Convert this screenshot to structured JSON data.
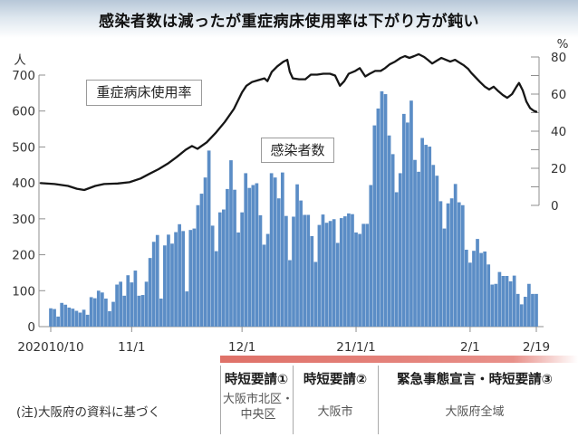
{
  "header": {
    "title": "感染者数は減ったが重症病床使用率は下がり方が鈍い"
  },
  "legends": {
    "line_label": "重症病床使用率",
    "bar_label": "感染者数"
  },
  "note": "(注)大阪府の資料に基づく",
  "colors": {
    "bar": "#5b8dc6",
    "line": "#161616",
    "band": "#e5847d",
    "axis": "#8f8f8f",
    "tick_text": "#333333"
  },
  "chart_data": {
    "type": "bar+line",
    "title": "感染者数は減ったが重症病床使用率は下がり方が鈍い",
    "start_date": "2020/10/10",
    "end_date": "2021/2/19",
    "left_axis": {
      "label": "人",
      "ticks": [
        0,
        100,
        200,
        300,
        400,
        500,
        600,
        700
      ],
      "max": 700
    },
    "right_axis": {
      "label": "%",
      "ticks": [
        0,
        20,
        40,
        60,
        80
      ],
      "minor_ticks": [
        10,
        30,
        50,
        70
      ],
      "max": 80
    },
    "x_axis": {
      "tick_labels": [
        "202010/10",
        "11/1",
        "12/1",
        "21/1/1",
        "2/1",
        "2/19"
      ],
      "tick_days": [
        0,
        22,
        52,
        83,
        114,
        132
      ]
    },
    "bar_series": {
      "name": "感染者数",
      "unit": "人",
      "values": [
        51,
        49,
        28,
        66,
        61,
        53,
        50,
        44,
        39,
        47,
        33,
        82,
        79,
        100,
        95,
        78,
        43,
        69,
        117,
        125,
        86,
        143,
        123,
        156,
        86,
        88,
        125,
        191,
        236,
        255,
        78,
        226,
        256,
        231,
        263,
        285,
        266,
        98,
        269,
        273,
        338,
        370,
        415,
        490,
        281,
        210,
        318,
        326,
        383,
        463,
        381,
        262,
        318,
        427,
        386,
        394,
        399,
        310,
        228,
        258,
        427,
        415,
        357,
        429,
        308,
        185,
        306,
        396,
        351,
        311,
        311,
        252,
        180,
        283,
        312,
        289,
        294,
        299,
        233,
        302,
        307,
        315,
        313,
        262,
        258,
        286,
        286,
        394,
        560,
        607,
        655,
        647,
        532,
        480,
        374,
        427,
        592,
        568,
        629,
        464,
        431,
        525,
        506,
        501,
        450,
        420,
        349,
        273,
        343,
        357,
        397,
        346,
        338,
        214,
        178,
        211,
        244,
        205,
        209,
        173,
        117,
        119,
        152,
        141,
        141,
        126,
        142,
        91,
        62,
        83,
        119,
        91,
        91
      ]
    },
    "line_series": {
      "name": "重症病床使用率",
      "unit": "%",
      "points": [
        [
          -2.7,
          12
        ],
        [
          1,
          11.5
        ],
        [
          4.7,
          10.5
        ],
        [
          7.1,
          9
        ],
        [
          9.1,
          8.3
        ],
        [
          12.1,
          10.5
        ],
        [
          14.5,
          11.5
        ],
        [
          18.2,
          11.8
        ],
        [
          21.4,
          12.5
        ],
        [
          24.4,
          14.5
        ],
        [
          26.8,
          17
        ],
        [
          29.3,
          19.5
        ],
        [
          31.8,
          22.5
        ],
        [
          34.2,
          26
        ],
        [
          36.7,
          30
        ],
        [
          38.4,
          32
        ],
        [
          39.9,
          30.5
        ],
        [
          42.4,
          34
        ],
        [
          44.8,
          39
        ],
        [
          47.3,
          45
        ],
        [
          49.8,
          52
        ],
        [
          52,
          61
        ],
        [
          53.2,
          64.5
        ],
        [
          54.7,
          66.5
        ],
        [
          56.4,
          67.5
        ],
        [
          58.1,
          68.5
        ],
        [
          58.9,
          67
        ],
        [
          60.1,
          72
        ],
        [
          61.6,
          75
        ],
        [
          63.3,
          77.5
        ],
        [
          64.3,
          78.5
        ],
        [
          65,
          72
        ],
        [
          65.8,
          68.5
        ],
        [
          67.5,
          68
        ],
        [
          69.2,
          68
        ],
        [
          70.7,
          70.5
        ],
        [
          72.4,
          70.5
        ],
        [
          74.1,
          71
        ],
        [
          75.9,
          71
        ],
        [
          77.3,
          70
        ],
        [
          78.6,
          64.5
        ],
        [
          79.8,
          67
        ],
        [
          81,
          71
        ],
        [
          82.8,
          72.5
        ],
        [
          84,
          74
        ],
        [
          85.5,
          69.5
        ],
        [
          86.7,
          71
        ],
        [
          88.2,
          72.5
        ],
        [
          89.7,
          72.5
        ],
        [
          90.9,
          74
        ],
        [
          92.1,
          76
        ],
        [
          93.6,
          77.5
        ],
        [
          95.1,
          79.5
        ],
        [
          96.3,
          80.5
        ],
        [
          97.5,
          79.5
        ],
        [
          98.8,
          80.5
        ],
        [
          100,
          81.5
        ],
        [
          101.5,
          80
        ],
        [
          102.5,
          78.5
        ],
        [
          103.7,
          76.5
        ],
        [
          104.9,
          78
        ],
        [
          106.2,
          79.5
        ],
        [
          107.4,
          78.5
        ],
        [
          108.6,
          77.5
        ],
        [
          109.9,
          78.5
        ],
        [
          111.1,
          77
        ],
        [
          112.3,
          75.5
        ],
        [
          113.5,
          73.5
        ],
        [
          114.3,
          71.5
        ],
        [
          115.5,
          69
        ],
        [
          116.7,
          66.5
        ],
        [
          118,
          64
        ],
        [
          119.2,
          62.5
        ],
        [
          120.4,
          64
        ],
        [
          121.7,
          61.5
        ],
        [
          122.9,
          59.5
        ],
        [
          124.1,
          58
        ],
        [
          125.4,
          60
        ],
        [
          126.6,
          64
        ],
        [
          127.3,
          66
        ],
        [
          128.3,
          62
        ],
        [
          129.3,
          56
        ],
        [
          130.3,
          52.5
        ],
        [
          131.3,
          51
        ],
        [
          132,
          50.5
        ]
      ]
    },
    "section_boundaries_x": [
      243,
      323,
      417
    ],
    "legend_position": "inside-top-left"
  },
  "annotations": {
    "sections": [
      {
        "title": "時短要請①",
        "subtitle": "大阪市北区・中央区"
      },
      {
        "title": "時短要請②",
        "subtitle": "大阪市"
      },
      {
        "title": "緊急事態宣言・時短要請③",
        "subtitle": "大阪府全域"
      }
    ]
  }
}
